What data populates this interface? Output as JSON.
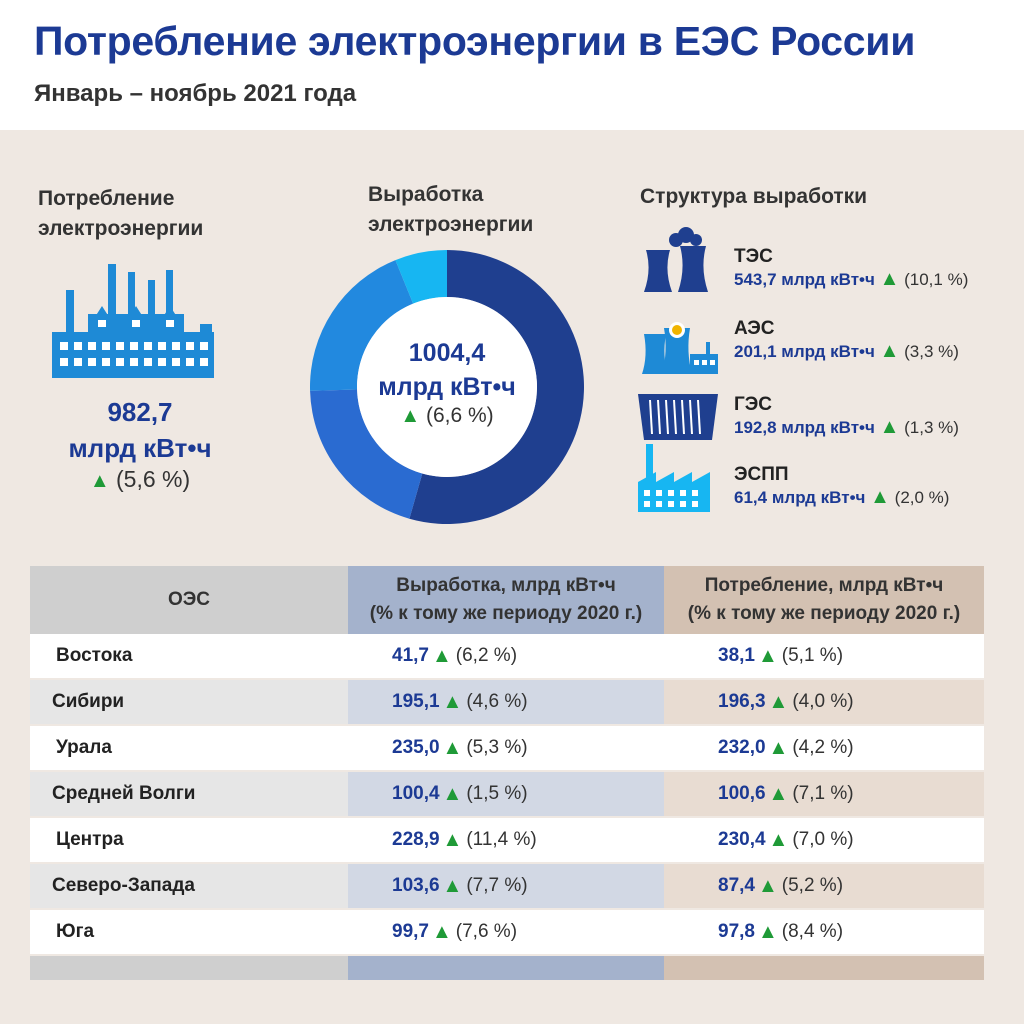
{
  "header": {
    "title": "Потребление электроэнергии в ЕЭС России",
    "subtitle": "Январь – ноябрь 2021 года"
  },
  "consumption": {
    "heading_line1": "Потребление",
    "heading_line2": "электроэнергии",
    "value": "982,7",
    "unit": "млрд кВт•ч",
    "change": "(5,6 %)"
  },
  "generation": {
    "heading_line1": "Выработка",
    "heading_line2": "электроэнергии",
    "value": "1004,4",
    "unit": "млрд кВт•ч",
    "change": "(6,6 %)"
  },
  "structure": {
    "heading": "Структура выработки",
    "unit": "млрд кВт•ч",
    "items": [
      {
        "name": "ТЭС",
        "value": "543,7",
        "change": "(10,1 %)"
      },
      {
        "name": "АЭС",
        "value": "201,1",
        "change": "(3,3 %)"
      },
      {
        "name": "ГЭС",
        "value": "192,8",
        "change": "(1,3 %)"
      },
      {
        "name": "ЭСПП",
        "value": "61,4",
        "change": "(2,0 %)"
      }
    ]
  },
  "table": {
    "col1": "ОЭС",
    "col2_line1": "Выработка, млрд кВт•ч",
    "col2_line2": "(% к тому же периоду 2020 г.)",
    "col3_line1": "Потребление, млрд кВт•ч",
    "col3_line2": "(% к тому же периоду 2020 г.)",
    "rows": [
      {
        "name": "Востока",
        "gen": "41,7",
        "gen_change": "(6,2 %)",
        "cons": "38,1",
        "cons_change": "(5,1 %)"
      },
      {
        "name": "Сибири",
        "gen": "195,1",
        "gen_change": "(4,6 %)",
        "cons": "196,3",
        "cons_change": "(4,0 %)"
      },
      {
        "name": "Урала",
        "gen": "235,0",
        "gen_change": "(5,3 %)",
        "cons": "232,0",
        "cons_change": "(4,2 %)"
      },
      {
        "name": "Средней Волги",
        "gen": "100,4",
        "gen_change": "(1,5 %)",
        "cons": "100,6",
        "cons_change": "(7,1 %)"
      },
      {
        "name": "Центра",
        "gen": "228,9",
        "gen_change": "(11,4 %)",
        "cons": "230,4",
        "cons_change": "(7,0 %)"
      },
      {
        "name": "Северо-Запада",
        "gen": "103,6",
        "gen_change": "(7,7 %)",
        "cons": "87,4",
        "cons_change": "(5,2 %)"
      },
      {
        "name": "Юга",
        "gen": "99,7",
        "gen_change": "(7,6 %)",
        "cons": "97,8",
        "cons_change": "(8,4 %)"
      }
    ]
  },
  "colors": {
    "accent": "#1c3a94",
    "up_arrow": "#1f9a37",
    "icon_blue": "#1e8ad6",
    "donut": [
      "#1f3f8f",
      "#2a6bd1",
      "#2289df",
      "#17b6f2"
    ],
    "gen_col": "#a4b2cc",
    "cons_col": "#d3c1b2"
  },
  "chart_data": {
    "type": "pie",
    "donut": true,
    "categories": [
      "ТЭС",
      "АЭС",
      "ГЭС",
      "ЭСПП"
    ],
    "values": [
      543.7,
      201.1,
      192.8,
      61.4
    ],
    "total": 1004.4
  }
}
